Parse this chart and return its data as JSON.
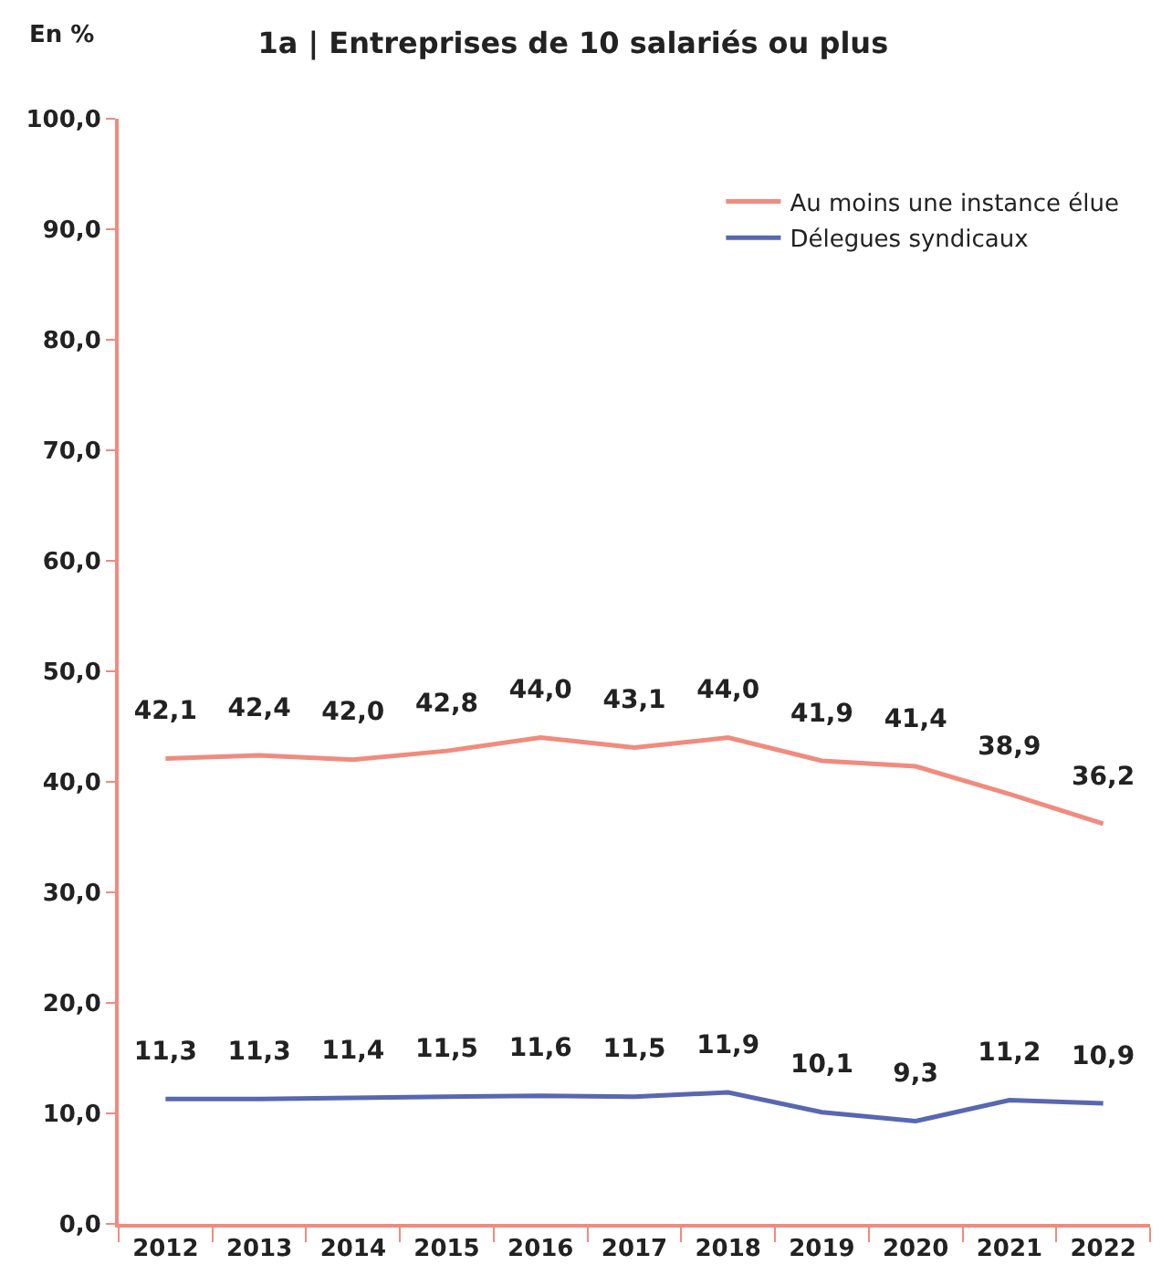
{
  "chart_data": {
    "type": "line",
    "title": "1a | Entreprises de 10 salariés ou plus",
    "ylabel": "En %",
    "categories": [
      "2012",
      "2013",
      "2014",
      "2015",
      "2016",
      "2017",
      "2018",
      "2019",
      "2020",
      "2021",
      "2022"
    ],
    "series": [
      {
        "name": "Au moins une instance élue",
        "color": "#f08b7d",
        "values": [
          42.1,
          42.4,
          42.0,
          42.8,
          44.0,
          43.1,
          44.0,
          41.9,
          41.4,
          38.9,
          36.2
        ],
        "value_labels": [
          "42,1",
          "42,4",
          "42,0",
          "42,8",
          "44,0",
          "43,1",
          "44,0",
          "41,9",
          "41,4",
          "38,9",
          "36,2"
        ]
      },
      {
        "name": "Délegues syndicaux",
        "color": "#5867b2",
        "values": [
          11.3,
          11.3,
          11.4,
          11.5,
          11.6,
          11.5,
          11.9,
          10.1,
          9.3,
          11.2,
          10.9
        ],
        "value_labels": [
          "11,3",
          "11,3",
          "11,4",
          "11,5",
          "11,6",
          "11,5",
          "11,9",
          "10,1",
          "9,3",
          "11,2",
          "10,9"
        ]
      }
    ],
    "ylim": [
      0,
      100
    ],
    "yticks": [
      {
        "value": 0,
        "label": "0,0"
      },
      {
        "value": 10,
        "label": "10,0"
      },
      {
        "value": 20,
        "label": "20,0"
      },
      {
        "value": 30,
        "label": "30,0"
      },
      {
        "value": 40,
        "label": "40,0"
      },
      {
        "value": 50,
        "label": "50,0"
      },
      {
        "value": 60,
        "label": "60,0"
      },
      {
        "value": 70,
        "label": "70,0"
      },
      {
        "value": 80,
        "label": "80,0"
      },
      {
        "value": 90,
        "label": "90,0"
      },
      {
        "value": 100,
        "label": "100,0"
      }
    ],
    "legend": "top right",
    "marker": "none",
    "line_style": "solid"
  }
}
